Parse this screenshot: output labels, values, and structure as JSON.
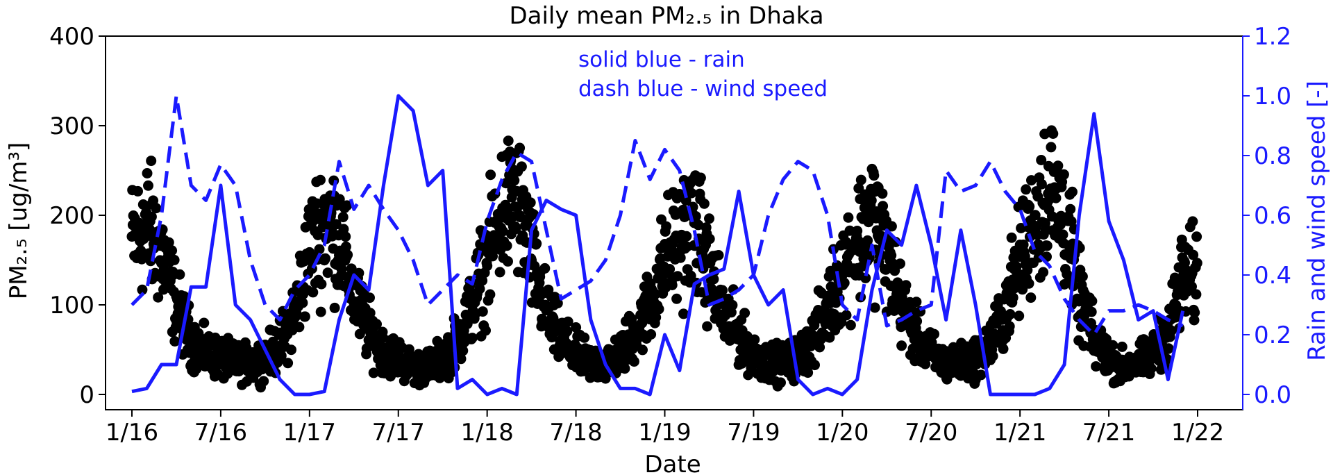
{
  "chart_data": {
    "type": "scatter",
    "title": "Daily mean PM₂.₅ in Dhaka",
    "xlabel": "Date",
    "ylabel": "PM₂.₅ [ug/m³]",
    "ylabel_right": "Rain and wind speed [-]",
    "x_ticks": [
      "1/16",
      "7/16",
      "1/17",
      "7/17",
      "1/18",
      "7/18",
      "1/19",
      "7/19",
      "1/20",
      "7/20",
      "1/21",
      "7/21",
      "1/22"
    ],
    "ylim": [
      0,
      400
    ],
    "yticks": [
      "0",
      "100",
      "200",
      "300",
      "400"
    ],
    "ylim_right": [
      0.0,
      1.2
    ],
    "yticks_right": [
      "0.0",
      "0.2",
      "0.4",
      "0.6",
      "0.8",
      "1.0",
      "1.2"
    ],
    "accent_color": "#1a1aff",
    "annotations": [
      "solid blue - rain",
      "dash blue - wind speed"
    ],
    "pm25_seasonal_profile": {
      "description_key": "month_index_from_jan2016",
      "months": [
        0,
        1,
        2,
        3,
        4,
        5,
        6,
        7,
        8,
        9,
        10,
        11,
        12,
        13,
        14,
        15,
        16,
        17,
        18,
        19,
        20,
        21,
        22,
        23,
        24,
        25,
        26,
        27,
        28,
        29,
        30,
        31,
        32,
        33,
        34,
        35,
        36,
        37,
        38,
        39,
        40,
        41,
        42,
        43,
        44,
        45,
        46,
        47,
        48,
        49,
        50,
        51,
        52,
        53,
        54,
        55,
        56,
        57,
        58,
        59,
        60,
        61,
        62,
        63,
        64,
        65,
        66,
        67,
        68,
        69,
        70,
        71
      ],
      "values": [
        170,
        190,
        160,
        100,
        60,
        45,
        40,
        35,
        35,
        40,
        55,
        90,
        160,
        195,
        180,
        110,
        70,
        50,
        40,
        30,
        30,
        40,
        60,
        100,
        150,
        200,
        220,
        150,
        90,
        60,
        45,
        35,
        35,
        45,
        70,
        100,
        150,
        175,
        190,
        140,
        90,
        65,
        45,
        35,
        35,
        40,
        60,
        95,
        140,
        170,
        200,
        160,
        100,
        65,
        45,
        35,
        35,
        40,
        55,
        95,
        150,
        195,
        230,
        200,
        110,
        60,
        40,
        30,
        35,
        45,
        70,
        130
      ]
    },
    "series": [
      {
        "name": "rain",
        "style": "solid",
        "x": [
          0,
          1,
          2,
          3,
          4,
          5,
          6,
          7,
          8,
          9,
          10,
          11,
          12,
          13,
          14,
          15,
          16,
          17,
          18,
          19,
          20,
          21,
          22,
          23,
          24,
          25,
          26,
          27,
          28,
          29,
          30,
          31,
          32,
          33,
          34,
          35,
          36,
          37,
          38,
          39,
          40,
          41,
          42,
          43,
          44,
          45,
          46,
          47,
          48,
          49,
          50,
          51,
          52,
          53,
          54,
          55,
          56,
          57,
          58,
          59,
          60,
          61,
          62,
          63,
          64,
          65,
          66,
          67,
          68,
          69,
          70,
          71
        ],
        "values": [
          0.01,
          0.02,
          0.1,
          0.1,
          0.36,
          0.36,
          0.7,
          0.3,
          0.25,
          0.15,
          0.05,
          0.0,
          0.0,
          0.01,
          0.25,
          0.4,
          0.35,
          0.7,
          1.0,
          0.95,
          0.7,
          0.75,
          0.02,
          0.05,
          0.0,
          0.02,
          0.0,
          0.55,
          0.65,
          0.62,
          0.6,
          0.25,
          0.1,
          0.02,
          0.02,
          0.0,
          0.2,
          0.08,
          0.37,
          0.4,
          0.42,
          0.68,
          0.4,
          0.3,
          0.35,
          0.05,
          0.0,
          0.02,
          0.0,
          0.05,
          0.35,
          0.55,
          0.5,
          0.7,
          0.5,
          0.25,
          0.55,
          0.3,
          0.0,
          0.0,
          0.0,
          0.0,
          0.02,
          0.1,
          0.6,
          0.94,
          0.58,
          0.45,
          0.25,
          0.28,
          0.05,
          0.28
        ]
      },
      {
        "name": "wind speed",
        "style": "dashed",
        "x": [
          0,
          1,
          2,
          3,
          4,
          5,
          6,
          7,
          8,
          9,
          10,
          11,
          12,
          13,
          14,
          15,
          16,
          17,
          18,
          19,
          20,
          21,
          22,
          23,
          24,
          25,
          26,
          27,
          28,
          29,
          30,
          31,
          32,
          33,
          34,
          35,
          36,
          37,
          38,
          39,
          40,
          41,
          42,
          43,
          44,
          45,
          46,
          47,
          48,
          49,
          50,
          51,
          52,
          53,
          54,
          55,
          56,
          57,
          58,
          59,
          60,
          61,
          62,
          63,
          64,
          65,
          66,
          67,
          68,
          69,
          70,
          71
        ],
        "values": [
          0.3,
          0.35,
          0.6,
          1.0,
          0.7,
          0.65,
          0.77,
          0.7,
          0.45,
          0.3,
          0.25,
          0.35,
          0.4,
          0.5,
          0.78,
          0.62,
          0.7,
          0.62,
          0.55,
          0.45,
          0.3,
          0.35,
          0.4,
          0.37,
          0.58,
          0.72,
          0.81,
          0.78,
          0.55,
          0.32,
          0.35,
          0.38,
          0.45,
          0.6,
          0.85,
          0.72,
          0.82,
          0.75,
          0.55,
          0.3,
          0.32,
          0.35,
          0.4,
          0.6,
          0.72,
          0.78,
          0.75,
          0.6,
          0.3,
          0.25,
          0.5,
          0.23,
          0.25,
          0.28,
          0.3,
          0.75,
          0.68,
          0.7,
          0.78,
          0.68,
          0.62,
          0.48,
          0.43,
          0.32,
          0.25,
          0.2,
          0.28,
          0.28,
          0.3,
          0.28,
          0.25,
          0.23
        ]
      }
    ]
  }
}
